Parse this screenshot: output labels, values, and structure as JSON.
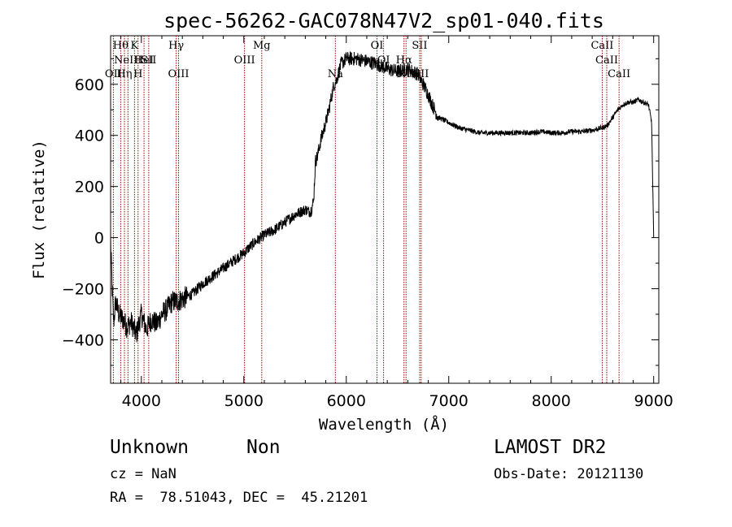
{
  "chart_data": {
    "type": "line",
    "title": "spec-56262-GAC078N47V2_sp01-040.fits",
    "xlabel": "Wavelength (Å)",
    "ylabel": "Flux (relative)",
    "xlim": [
      3700,
      9050
    ],
    "ylim": [
      -570,
      790
    ],
    "xticks": [
      4000,
      5000,
      6000,
      7000,
      8000,
      9000
    ],
    "yticks": [
      -400,
      -200,
      0,
      200,
      400,
      600
    ],
    "xtick_labels": [
      "4000",
      "5000",
      "6000",
      "7000",
      "8000",
      "9000"
    ],
    "ytick_labels": [
      "−400",
      "−200",
      "0",
      "200",
      "400",
      "600"
    ],
    "grid": false,
    "series": [
      {
        "x": [
          3700,
          3715,
          3730,
          3750,
          3780,
          3820,
          3860,
          3900,
          3950,
          4000,
          4050,
          4100,
          4150,
          4200,
          4250,
          4300,
          4350,
          4400,
          4500,
          4600,
          4700,
          4800,
          4900,
          5000,
          5100,
          5200,
          5300,
          5400,
          5500,
          5600,
          5650,
          5680,
          5700,
          5720,
          5750,
          5800,
          5830,
          5860,
          5880,
          5900,
          5950,
          6000,
          6100,
          6200,
          6300,
          6400,
          6500,
          6600,
          6700,
          6750,
          6800,
          6850,
          6900,
          7000,
          7100,
          7200,
          7300,
          7400,
          7500,
          7600,
          7700,
          7800,
          7900,
          8000,
          8100,
          8200,
          8300,
          8400,
          8500,
          8550,
          8600,
          8650,
          8700,
          8750,
          8800,
          8850,
          8900,
          8950,
          8980,
          9000
        ],
        "y": [
          -10,
          -200,
          -330,
          -250,
          -300,
          -320,
          -350,
          -330,
          -380,
          -300,
          -360,
          -320,
          -340,
          -300,
          -280,
          -250,
          -250,
          -240,
          -220,
          -180,
          -150,
          -120,
          -90,
          -60,
          -20,
          10,
          30,
          60,
          90,
          110,
          100,
          140,
          300,
          320,
          380,
          450,
          500,
          560,
          600,
          610,
          680,
          700,
          700,
          690,
          680,
          660,
          650,
          660,
          640,
          600,
          560,
          510,
          470,
          450,
          430,
          420,
          410,
          410,
          410,
          410,
          410,
          410,
          415,
          410,
          410,
          415,
          415,
          420,
          430,
          440,
          470,
          500,
          520,
          530,
          530,
          540,
          530,
          520,
          450,
          0
        ],
        "name": ""
      }
    ],
    "lines": [
      {
        "wl": 3727,
        "label": "OII",
        "row": 3
      },
      {
        "wl": 3798,
        "label": "Hθ",
        "row": 1
      },
      {
        "wl": 3835,
        "label": "Hη",
        "row": 3
      },
      {
        "wl": 3869,
        "label": "NeIII",
        "row": 2
      },
      {
        "wl": 3933,
        "label": "K",
        "row": 1
      },
      {
        "wl": 3968,
        "label": "H",
        "row": 3
      },
      {
        "wl": 4026,
        "label": "HeI",
        "row": 2
      },
      {
        "wl": 4072,
        "label": "SII",
        "row": 2
      },
      {
        "wl": 4340,
        "label": "Hγ",
        "row": 1
      },
      {
        "wl": 4363,
        "label": "OIII",
        "row": 3
      },
      {
        "wl": 5007,
        "label": "OIII",
        "row": 2
      },
      {
        "wl": 5175,
        "label": "Mg",
        "row": 1
      },
      {
        "wl": 5893,
        "label": "Na",
        "row": 3
      },
      {
        "wl": 6300,
        "label": "OI",
        "row": 1
      },
      {
        "wl": 6364,
        "label": "OI",
        "row": 2
      },
      {
        "wl": 6563,
        "label": "Hα",
        "row": 2
      },
      {
        "wl": 6583,
        "label": "NII",
        "row": 3
      },
      {
        "wl": 6716,
        "label": "SII",
        "row": 1
      },
      {
        "wl": 6731,
        "label": "SII",
        "row": 3
      },
      {
        "wl": 8498,
        "label": "CaII",
        "row": 1
      },
      {
        "wl": 8542,
        "label": "CaII",
        "row": 2
      },
      {
        "wl": 8662,
        "label": "CaII",
        "row": 3
      }
    ]
  },
  "info": {
    "class_label": "Unknown",
    "subclass_label": "Non",
    "survey_label": "LAMOST DR2",
    "cz_text": "cz = NaN",
    "obs_date_text": "Obs-Date: 20121130",
    "radec_text": "RA =  78.51043, DEC =  45.21201"
  },
  "colors": {
    "spectrum": "#000000",
    "line_marker": "#990000"
  }
}
